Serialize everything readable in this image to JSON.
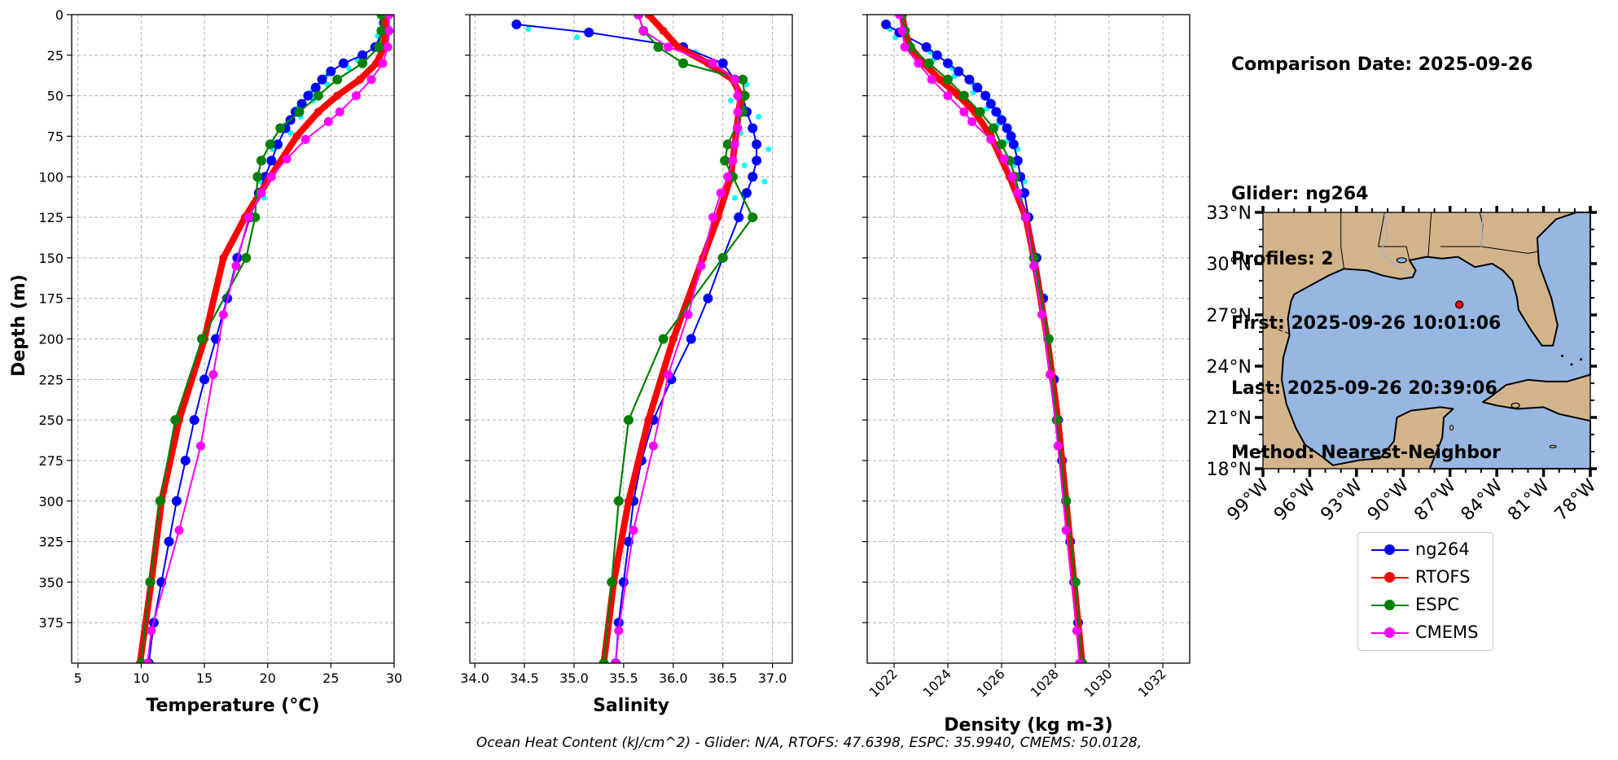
{
  "info": {
    "lines": [
      "Comparison Date: 2025-09-26",
      "",
      "Glider: ng264",
      "Profiles: 2",
      "First: 2025-09-26 10:01:06",
      "Last: 2025-09-26 20:39:06",
      "Method: Nearest-Neighbor"
    ]
  },
  "footer": "Ocean Heat Content (kJ/cm^2) - Glider: N/A,  RTOFS: 47.6398,  ESPC: 35.9940,  CMEMS: 50.0128,",
  "colors": {
    "ng264": "#0000ff",
    "ng264_raw": "#00ffff",
    "RTOFS": "#ff0000",
    "ESPC": "#008000",
    "CMEMS": "#ff00ff",
    "land": "#d2b48c",
    "ocean": "#97b6e1"
  },
  "legend": [
    {
      "name": "ng264",
      "color": "#0000ff"
    },
    {
      "name": "RTOFS",
      "color": "#ff0000"
    },
    {
      "name": "ESPC",
      "color": "#008000"
    },
    {
      "name": "CMEMS",
      "color": "#ff00ff"
    }
  ],
  "chart_data": [
    {
      "type": "line",
      "xlabel": "Temperature (°C)",
      "ylabel": "Depth (m)",
      "xlim": [
        4.5,
        30
      ],
      "ylim": [
        400,
        0
      ],
      "x_ticks": [
        5,
        10,
        15,
        20,
        25,
        30
      ],
      "y_ticks": [
        0,
        25,
        50,
        75,
        100,
        125,
        150,
        175,
        200,
        225,
        250,
        275,
        300,
        325,
        350,
        375
      ],
      "grid": true,
      "series": [
        {
          "name": "ng264",
          "depth": [
            5,
            10,
            20,
            25,
            30,
            35,
            40,
            45,
            50,
            55,
            60,
            65,
            70,
            80,
            90,
            100,
            110,
            125,
            150,
            175,
            200,
            225,
            250,
            275,
            300,
            325,
            350,
            375,
            400
          ],
          "values": [
            29.2,
            29.1,
            28.5,
            27.5,
            26.0,
            25.0,
            24.3,
            23.8,
            23.2,
            22.7,
            22.2,
            21.8,
            21.4,
            20.8,
            20.3,
            19.8,
            19.3,
            18.6,
            17.6,
            16.8,
            15.9,
            15.0,
            14.2,
            13.5,
            12.8,
            12.2,
            11.6,
            11.0,
            10.6
          ]
        },
        {
          "name": "RTOFS",
          "depth": [
            0,
            10,
            20,
            30,
            40,
            50,
            60,
            75,
            100,
            125,
            150,
            200,
            250,
            300,
            350,
            400
          ],
          "values": [
            29.3,
            29.3,
            29.2,
            28.6,
            27.3,
            25.5,
            24.0,
            22.3,
            20.2,
            18.2,
            16.5,
            15.0,
            13.0,
            11.6,
            10.8,
            9.9
          ]
        },
        {
          "name": "ESPC",
          "depth": [
            0,
            10,
            20,
            30,
            40,
            50,
            60,
            70,
            80,
            90,
            100,
            125,
            150,
            200,
            250,
            300,
            350,
            400
          ],
          "values": [
            29.0,
            29.0,
            28.8,
            27.5,
            25.5,
            24.0,
            22.5,
            21.0,
            20.2,
            19.5,
            19.2,
            19.0,
            18.3,
            14.8,
            12.7,
            11.5,
            10.7,
            10.0
          ]
        },
        {
          "name": "CMEMS",
          "depth": [
            0,
            10,
            20,
            30,
            40,
            50,
            60,
            66,
            77,
            89,
            100,
            110,
            125,
            155,
            185,
            222,
            266,
            318,
            380,
            400
          ],
          "values": [
            29.6,
            29.6,
            29.5,
            29.1,
            28.2,
            27.0,
            25.7,
            24.8,
            23.0,
            21.5,
            20.3,
            19.5,
            18.5,
            17.5,
            16.5,
            15.7,
            14.7,
            13.0,
            10.8,
            10.5
          ]
        }
      ]
    },
    {
      "type": "line",
      "xlabel": "Salinity",
      "ylabel": "",
      "xlim": [
        33.95,
        37.2
      ],
      "ylim": [
        400,
        0
      ],
      "x_ticks": [
        34.0,
        34.5,
        35.0,
        35.5,
        36.0,
        36.5,
        37.0
      ],
      "grid": true,
      "series": [
        {
          "name": "ng264",
          "depth": [
            6,
            11,
            20,
            30,
            40,
            50,
            60,
            70,
            80,
            90,
            100,
            110,
            125,
            150,
            175,
            200,
            225,
            250,
            275,
            300,
            325,
            350,
            375,
            400
          ],
          "values": [
            34.42,
            35.15,
            36.1,
            36.5,
            36.62,
            36.7,
            36.74,
            36.8,
            36.84,
            36.84,
            36.8,
            36.74,
            36.66,
            36.5,
            36.35,
            36.18,
            35.98,
            35.8,
            35.68,
            35.6,
            35.55,
            35.5,
            35.45,
            35.42
          ]
        },
        {
          "name": "RTOFS",
          "depth": [
            0,
            10,
            20,
            30,
            40,
            50,
            60,
            70,
            80,
            100,
            125,
            150,
            200,
            250,
            300,
            350,
            400
          ],
          "values": [
            35.75,
            35.9,
            36.05,
            36.35,
            36.6,
            36.68,
            36.66,
            36.64,
            36.62,
            36.58,
            36.45,
            36.3,
            36.0,
            35.75,
            35.55,
            35.4,
            35.3
          ]
        },
        {
          "name": "ESPC",
          "depth": [
            0,
            10,
            20,
            30,
            40,
            50,
            60,
            80,
            90,
            100,
            125,
            150,
            200,
            250,
            300,
            350,
            400
          ],
          "values": [
            35.65,
            35.7,
            35.85,
            36.1,
            36.7,
            36.72,
            36.7,
            36.55,
            36.52,
            36.6,
            36.8,
            36.5,
            35.9,
            35.55,
            35.45,
            35.38,
            35.3
          ]
        },
        {
          "name": "CMEMS",
          "depth": [
            0,
            10,
            20,
            30,
            40,
            50,
            60,
            70,
            80,
            90,
            100,
            110,
            125,
            155,
            185,
            222,
            266,
            318,
            380,
            400
          ],
          "values": [
            35.65,
            35.7,
            35.95,
            36.4,
            36.62,
            36.65,
            36.65,
            36.65,
            36.62,
            36.6,
            36.55,
            36.48,
            36.4,
            36.28,
            36.15,
            35.95,
            35.8,
            35.6,
            35.45,
            35.42
          ]
        }
      ]
    },
    {
      "type": "line",
      "xlabel": "Density (kg m-3)",
      "ylabel": "",
      "xlim": [
        1021.0,
        1033.0
      ],
      "ylim": [
        400,
        0
      ],
      "x_ticks": [
        1022,
        1024,
        1026,
        1028,
        1030,
        1032
      ],
      "grid": true,
      "series": [
        {
          "name": "ng264",
          "depth": [
            6,
            11,
            20,
            25,
            30,
            35,
            40,
            45,
            50,
            55,
            60,
            65,
            70,
            75,
            80,
            90,
            100,
            110,
            125,
            150,
            175,
            200,
            225,
            250,
            275,
            300,
            325,
            350,
            375,
            400
          ],
          "values": [
            1021.7,
            1022.2,
            1023.2,
            1023.6,
            1024.0,
            1024.4,
            1024.8,
            1025.1,
            1025.4,
            1025.6,
            1025.8,
            1026.0,
            1026.2,
            1026.35,
            1026.45,
            1026.6,
            1026.7,
            1026.85,
            1027.0,
            1027.3,
            1027.55,
            1027.75,
            1027.95,
            1028.1,
            1028.25,
            1028.4,
            1028.55,
            1028.7,
            1028.85,
            1029.0
          ]
        },
        {
          "name": "RTOFS",
          "depth": [
            0,
            10,
            20,
            30,
            40,
            50,
            60,
            75,
            100,
            125,
            150,
            200,
            250,
            300,
            350,
            400
          ],
          "values": [
            1022.3,
            1022.4,
            1022.6,
            1023.1,
            1023.7,
            1024.4,
            1025.0,
            1025.6,
            1026.3,
            1026.9,
            1027.2,
            1027.7,
            1028.1,
            1028.4,
            1028.7,
            1029.0
          ]
        },
        {
          "name": "ESPC",
          "depth": [
            0,
            10,
            20,
            30,
            40,
            50,
            60,
            70,
            80,
            90,
            100,
            125,
            150,
            200,
            250,
            300,
            350,
            400
          ],
          "values": [
            1022.3,
            1022.4,
            1022.6,
            1023.3,
            1024.0,
            1024.6,
            1025.2,
            1025.7,
            1026.0,
            1026.3,
            1026.5,
            1026.9,
            1027.2,
            1027.75,
            1028.05,
            1028.4,
            1028.75,
            1029.0
          ]
        },
        {
          "name": "CMEMS",
          "depth": [
            0,
            10,
            20,
            30,
            40,
            50,
            60,
            66,
            77,
            89,
            100,
            110,
            125,
            155,
            185,
            222,
            266,
            318,
            380,
            400
          ],
          "values": [
            1022.2,
            1022.3,
            1022.4,
            1022.9,
            1023.4,
            1024.0,
            1024.6,
            1024.9,
            1025.6,
            1026.1,
            1026.4,
            1026.6,
            1026.9,
            1027.2,
            1027.5,
            1027.8,
            1028.1,
            1028.4,
            1028.8,
            1028.9
          ]
        }
      ]
    }
  ],
  "map": {
    "lat_ticks": [
      "33°N",
      "30°N",
      "27°N",
      "24°N",
      "21°N",
      "18°N"
    ],
    "lon_ticks": [
      "99°W",
      "96°W",
      "93°W",
      "90°W",
      "87°W",
      "84°W",
      "81°W",
      "78°W"
    ],
    "lat_range": [
      18,
      33
    ],
    "lon_range": [
      -99,
      -78
    ],
    "glider_position": {
      "lon": -86.4,
      "lat": 27.6
    }
  }
}
